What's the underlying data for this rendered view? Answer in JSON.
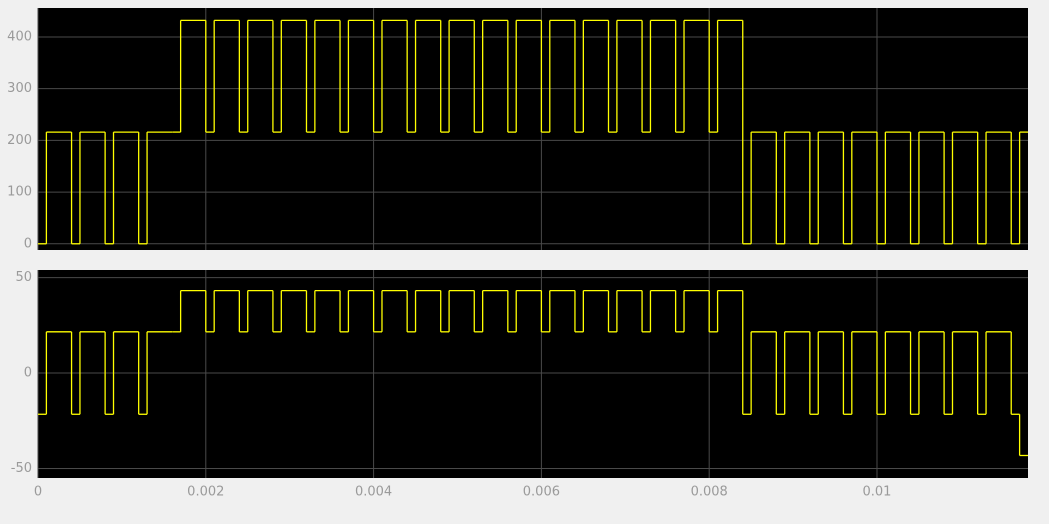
{
  "chart_data": [
    {
      "type": "step",
      "color": "#ffff00",
      "grid": true,
      "show_xtick_labels": false,
      "xlim": [
        0,
        0.0118
      ],
      "ylim": [
        -12,
        456
      ],
      "xticks": [
        0,
        0.002,
        0.004,
        0.006,
        0.008,
        0.01
      ],
      "yticks": [
        0,
        100,
        200,
        300,
        400
      ],
      "x": [
        0,
        0.0001,
        0.0004,
        0.0005,
        0.0008,
        0.0009,
        0.0012,
        0.0013,
        0.0016,
        0.0017,
        0.002,
        0.0021,
        0.0024,
        0.0025,
        0.0028,
        0.0029,
        0.0032,
        0.0033,
        0.0036,
        0.0037,
        0.004,
        0.0041,
        0.0044,
        0.0045,
        0.0048,
        0.0049,
        0.0052,
        0.0053,
        0.0056,
        0.0057,
        0.006,
        0.0061,
        0.0064,
        0.0065,
        0.0068,
        0.0069,
        0.0072,
        0.0073,
        0.0076,
        0.0077,
        0.008,
        0.0081,
        0.0084,
        0.0085,
        0.0088,
        0.0089,
        0.0092,
        0.0093,
        0.0096,
        0.0097,
        0.01,
        0.0101,
        0.0104,
        0.0105,
        0.0108,
        0.0109,
        0.0112,
        0.0113,
        0.0116,
        0.0117
      ],
      "values": [
        0,
        216,
        0,
        216,
        0,
        216,
        0,
        216,
        216,
        432,
        216,
        432,
        216,
        432,
        216,
        432,
        216,
        432,
        216,
        432,
        216,
        432,
        216,
        432,
        216,
        432,
        216,
        432,
        216,
        432,
        216,
        432,
        216,
        432,
        216,
        432,
        216,
        432,
        216,
        432,
        216,
        432,
        0,
        216,
        0,
        216,
        0,
        216,
        0,
        216,
        0,
        216,
        0,
        216,
        0,
        216,
        0,
        216,
        0,
        216
      ]
    },
    {
      "type": "step",
      "color": "#ffff00",
      "grid": true,
      "show_xtick_labels": true,
      "xlim": [
        0,
        0.0118
      ],
      "ylim": [
        -55,
        54
      ],
      "xticks": [
        0,
        0.002,
        0.004,
        0.006,
        0.008,
        0.01
      ],
      "yticks": [
        -50,
        0,
        50
      ],
      "x": [
        0,
        0.0001,
        0.0004,
        0.0005,
        0.0008,
        0.0009,
        0.0012,
        0.0013,
        0.0016,
        0.0017,
        0.002,
        0.0021,
        0.0024,
        0.0025,
        0.0028,
        0.0029,
        0.0032,
        0.0033,
        0.0036,
        0.0037,
        0.004,
        0.0041,
        0.0044,
        0.0045,
        0.0048,
        0.0049,
        0.0052,
        0.0053,
        0.0056,
        0.0057,
        0.006,
        0.0061,
        0.0064,
        0.0065,
        0.0068,
        0.0069,
        0.0072,
        0.0073,
        0.0076,
        0.0077,
        0.008,
        0.0081,
        0.0084,
        0.0085,
        0.0088,
        0.0089,
        0.0092,
        0.0093,
        0.0096,
        0.0097,
        0.01,
        0.0101,
        0.0104,
        0.0105,
        0.0108,
        0.0109,
        0.0112,
        0.0113,
        0.0116,
        0.0117
      ],
      "values": [
        -21.6,
        21.6,
        -21.6,
        21.6,
        -21.6,
        21.6,
        -21.6,
        21.6,
        21.6,
        43.2,
        21.6,
        43.2,
        21.6,
        43.2,
        21.6,
        43.2,
        21.6,
        43.2,
        21.6,
        43.2,
        21.6,
        43.2,
        21.6,
        43.2,
        21.6,
        43.2,
        21.6,
        43.2,
        21.6,
        43.2,
        21.6,
        43.2,
        21.6,
        43.2,
        21.6,
        43.2,
        21.6,
        43.2,
        21.6,
        43.2,
        21.6,
        43.2,
        -21.6,
        21.6,
        -21.6,
        21.6,
        -21.6,
        21.6,
        -21.6,
        21.6,
        -21.6,
        21.6,
        -21.6,
        21.6,
        -21.6,
        21.6,
        -21.6,
        21.6,
        -21.6,
        -43.2
      ]
    }
  ]
}
